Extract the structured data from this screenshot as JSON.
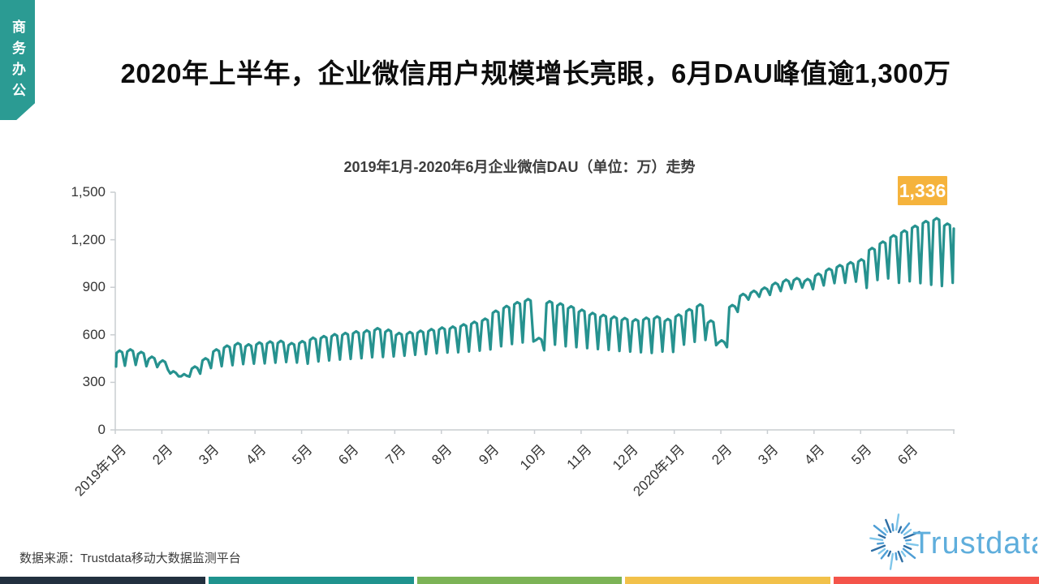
{
  "ribbon": {
    "label": "商务办公",
    "color": "#2B9B93"
  },
  "header": {
    "title": "2020年上半年，企业微信用户规模增长亮眼，6月DAU峰值逾1,300万"
  },
  "chart_data": {
    "type": "line",
    "title": "2019年1月-2020年6月企业微信DAU（单位：万）走势",
    "unit": "万",
    "series_name": "企业微信DAU",
    "line_color": "#26928F",
    "axis_color": "#C9CDD1",
    "ylim": [
      0,
      1500
    ],
    "y_tick_values": [
      0,
      300,
      600,
      900,
      1200,
      1500
    ],
    "y_tick_labels": [
      "0",
      "300",
      "600",
      "900",
      "1,200",
      "1,500"
    ],
    "x_categories": [
      "2019年1月",
      "2月",
      "3月",
      "4月",
      "5月",
      "6月",
      "7月",
      "8月",
      "9月",
      "10月",
      "11月",
      "12月",
      "2020年1月",
      "2月",
      "3月",
      "4月",
      "5月",
      "6月"
    ],
    "grid": false,
    "legend": "none",
    "weekly_high_low": [
      [
        500,
        405
      ],
      [
        508,
        410
      ],
      [
        492,
        402
      ],
      [
        462,
        396
      ],
      [
        438,
        380
      ],
      [
        370,
        338
      ],
      [
        352,
        336
      ],
      [
        400,
        355
      ],
      [
        452,
        390
      ],
      [
        508,
        402
      ],
      [
        532,
        408
      ],
      [
        548,
        415
      ],
      [
        540,
        418
      ],
      [
        552,
        420
      ],
      [
        558,
        424
      ],
      [
        562,
        428
      ],
      [
        548,
        425
      ],
      [
        560,
        418
      ],
      [
        582,
        432
      ],
      [
        592,
        438
      ],
      [
        604,
        444
      ],
      [
        612,
        448
      ],
      [
        622,
        452
      ],
      [
        628,
        458
      ],
      [
        642,
        460
      ],
      [
        632,
        464
      ],
      [
        612,
        468
      ],
      [
        618,
        474
      ],
      [
        626,
        478
      ],
      [
        636,
        484
      ],
      [
        646,
        488
      ],
      [
        652,
        490
      ],
      [
        666,
        494
      ],
      [
        682,
        500
      ],
      [
        702,
        508
      ],
      [
        752,
        528
      ],
      [
        782,
        542
      ],
      [
        806,
        552
      ],
      [
        826,
        558
      ],
      [
        580,
        502
      ],
      [
        812,
        538
      ],
      [
        798,
        528
      ],
      [
        780,
        522
      ],
      [
        758,
        516
      ],
      [
        738,
        510
      ],
      [
        726,
        505
      ],
      [
        715,
        498
      ],
      [
        706,
        494
      ],
      [
        698,
        490
      ],
      [
        708,
        486
      ],
      [
        716,
        494
      ],
      [
        700,
        492
      ],
      [
        728,
        538
      ],
      [
        762,
        556
      ],
      [
        792,
        568
      ],
      [
        690,
        535
      ],
      [
        565,
        522
      ],
      [
        788,
        745
      ],
      [
        858,
        822
      ],
      [
        878,
        840
      ],
      [
        898,
        852
      ],
      [
        928,
        876
      ],
      [
        948,
        890
      ],
      [
        958,
        898
      ],
      [
        952,
        888
      ],
      [
        986,
        912
      ],
      [
        1018,
        926
      ],
      [
        1040,
        928
      ],
      [
        1058,
        936
      ],
      [
        1076,
        896
      ],
      [
        1148,
        946
      ],
      [
        1188,
        956
      ],
      [
        1228,
        928
      ],
      [
        1258,
        938
      ],
      [
        1288,
        926
      ],
      [
        1318,
        916
      ],
      [
        1336,
        908
      ],
      [
        1302,
        928
      ]
    ],
    "start_value": 400,
    "end_value": 1270,
    "peak_annotation": {
      "text": "1,336",
      "value": 1336,
      "box_color": "#F5B33C",
      "text_color": "#FFFFFF"
    }
  },
  "footer": {
    "source": "数据来源：Trustdata移动大数据监测平台",
    "logo_text": "Trustdata",
    "logo_text_color": "#5FAEDC",
    "logo_ray_colors": [
      "#2E6EA4",
      "#4E9ED5",
      "#7FC6EA"
    ],
    "strip_colors": [
      "#22303F",
      "#1F938E",
      "#7CB356",
      "#F2C14A",
      "#F4544A"
    ]
  }
}
